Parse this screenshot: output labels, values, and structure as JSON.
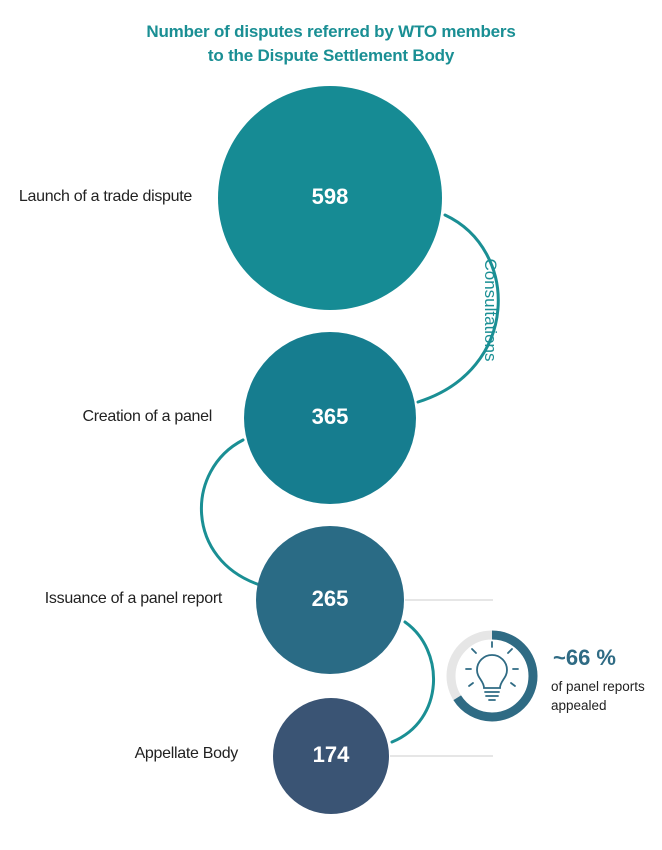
{
  "title_line1": "Number of disputes referred by WTO members",
  "title_line2": "to the Dispute Settlement Body",
  "stages": [
    {
      "label": "Launch of a trade dispute",
      "value": "598",
      "color": "#168b94"
    },
    {
      "label": "Creation of a panel",
      "value": "365",
      "color": "#167d8f"
    },
    {
      "label": "Issuance of a panel report",
      "value": "265",
      "color": "#2a6b85"
    },
    {
      "label": "Appellate Body",
      "value": "174",
      "color": "#3a5474"
    }
  ],
  "phase_label": "Consultations",
  "stat": {
    "value": "~66 %",
    "description": "of panel reports appealed",
    "fraction": 0.66,
    "icon": "lightbulb-icon"
  },
  "colors": {
    "title": "#1a8f94",
    "connector": "#1a8f94",
    "ring_bg": "#e6e6e6",
    "ring_fg": "#2f6b84"
  }
}
